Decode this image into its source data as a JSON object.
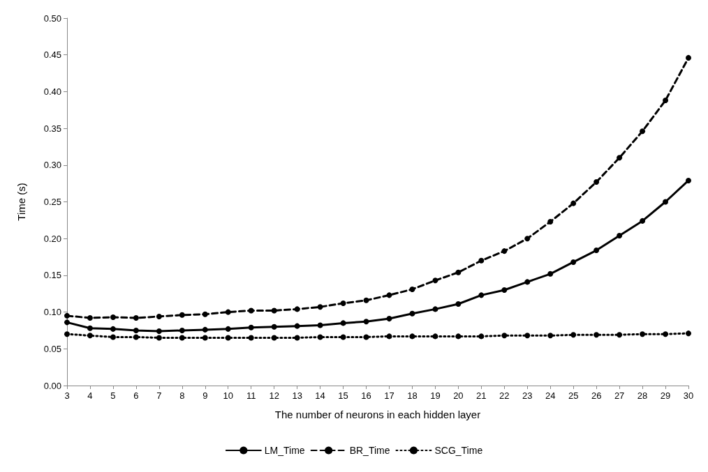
{
  "chart_data": {
    "type": "line",
    "xlabel": "The number of neurons in each hidden layer",
    "ylabel": "Time (s)",
    "categories": [
      "3",
      "4",
      "5",
      "6",
      "7",
      "8",
      "9",
      "10",
      "11",
      "12",
      "13",
      "14",
      "15",
      "16",
      "17",
      "18",
      "19",
      "20",
      "21",
      "22",
      "23",
      "24",
      "25",
      "26",
      "27",
      "28",
      "29",
      "30"
    ],
    "series": [
      {
        "name": "LM_Time",
        "color": "#000000",
        "line_style": "solid",
        "values": [
          0.086,
          0.078,
          0.077,
          0.075,
          0.074,
          0.075,
          0.076,
          0.077,
          0.079,
          0.08,
          0.081,
          0.082,
          0.085,
          0.087,
          0.091,
          0.098,
          0.104,
          0.111,
          0.123,
          0.13,
          0.141,
          0.152,
          0.168,
          0.184,
          0.204,
          0.224,
          0.25,
          0.279
        ]
      },
      {
        "name": "BR_Time",
        "color": "#000000",
        "line_style": "dashed",
        "values": [
          0.095,
          0.092,
          0.093,
          0.092,
          0.094,
          0.096,
          0.097,
          0.1,
          0.102,
          0.102,
          0.104,
          0.107,
          0.112,
          0.116,
          0.123,
          0.131,
          0.143,
          0.154,
          0.17,
          0.183,
          0.2,
          0.223,
          0.248,
          0.277,
          0.31,
          0.346,
          0.388,
          0.446
        ]
      },
      {
        "name": "SCG_Time",
        "color": "#000000",
        "line_style": "dotted",
        "values": [
          0.07,
          0.068,
          0.066,
          0.066,
          0.065,
          0.065,
          0.065,
          0.065,
          0.065,
          0.065,
          0.065,
          0.066,
          0.066,
          0.066,
          0.067,
          0.067,
          0.067,
          0.067,
          0.067,
          0.068,
          0.068,
          0.068,
          0.069,
          0.069,
          0.069,
          0.07,
          0.07,
          0.071
        ]
      }
    ],
    "ylim": [
      0,
      0.5
    ],
    "yticks": [
      {
        "value": 0,
        "label": "0.00"
      },
      0.05,
      {
        "value": 0.1,
        "label": "0.10"
      },
      0.15,
      {
        "value": 0.2,
        "label": "0.20"
      },
      0.25,
      {
        "value": 0.3,
        "label": "0.30"
      },
      0.35,
      {
        "value": 0.4,
        "label": "0.40"
      },
      0.45,
      {
        "value": 0.5,
        "label": "0.50"
      }
    ],
    "grid": false,
    "legend": "bottom",
    "marker": "circle"
  }
}
